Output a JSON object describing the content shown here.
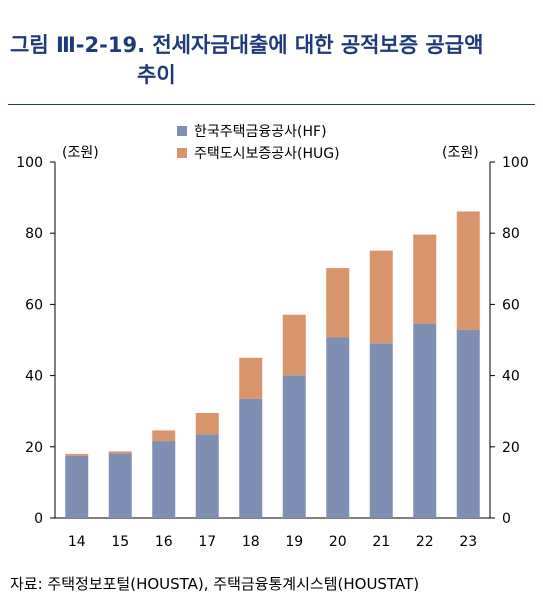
{
  "title": {
    "line1": "그림 Ⅲ-2-19. 전세자금대출에 대한 공적보증 공급액",
    "line2": "추이"
  },
  "source": "자료: 주택정보포털(HOUSTA), 주택금융통계시스템(HOUSTAT)",
  "chart_data": {
    "type": "bar",
    "stacked": true,
    "categories": [
      "14",
      "15",
      "16",
      "17",
      "18",
      "19",
      "20",
      "21",
      "22",
      "23"
    ],
    "series": [
      {
        "name": "한국주택금융공사(HF)",
        "color": "#7f8fb4",
        "values": [
          17.5,
          18.2,
          21.6,
          23.5,
          33.5,
          40.1,
          50.7,
          49.1,
          54.6,
          52.9
        ]
      },
      {
        "name": "주택도시보증공사(HUG)",
        "color": "#d8946a",
        "values": [
          0.5,
          0.5,
          3.0,
          6.0,
          11.5,
          17.0,
          19.5,
          26.0,
          25.0,
          33.2
        ]
      }
    ],
    "ylim": [
      0,
      100
    ],
    "yticks": [
      "0",
      "20",
      "40",
      "60",
      "80",
      "100"
    ],
    "y_unit_left": "(조원)",
    "y_unit_right": "(조원)",
    "legend_position": "top-center",
    "grid": false
  }
}
